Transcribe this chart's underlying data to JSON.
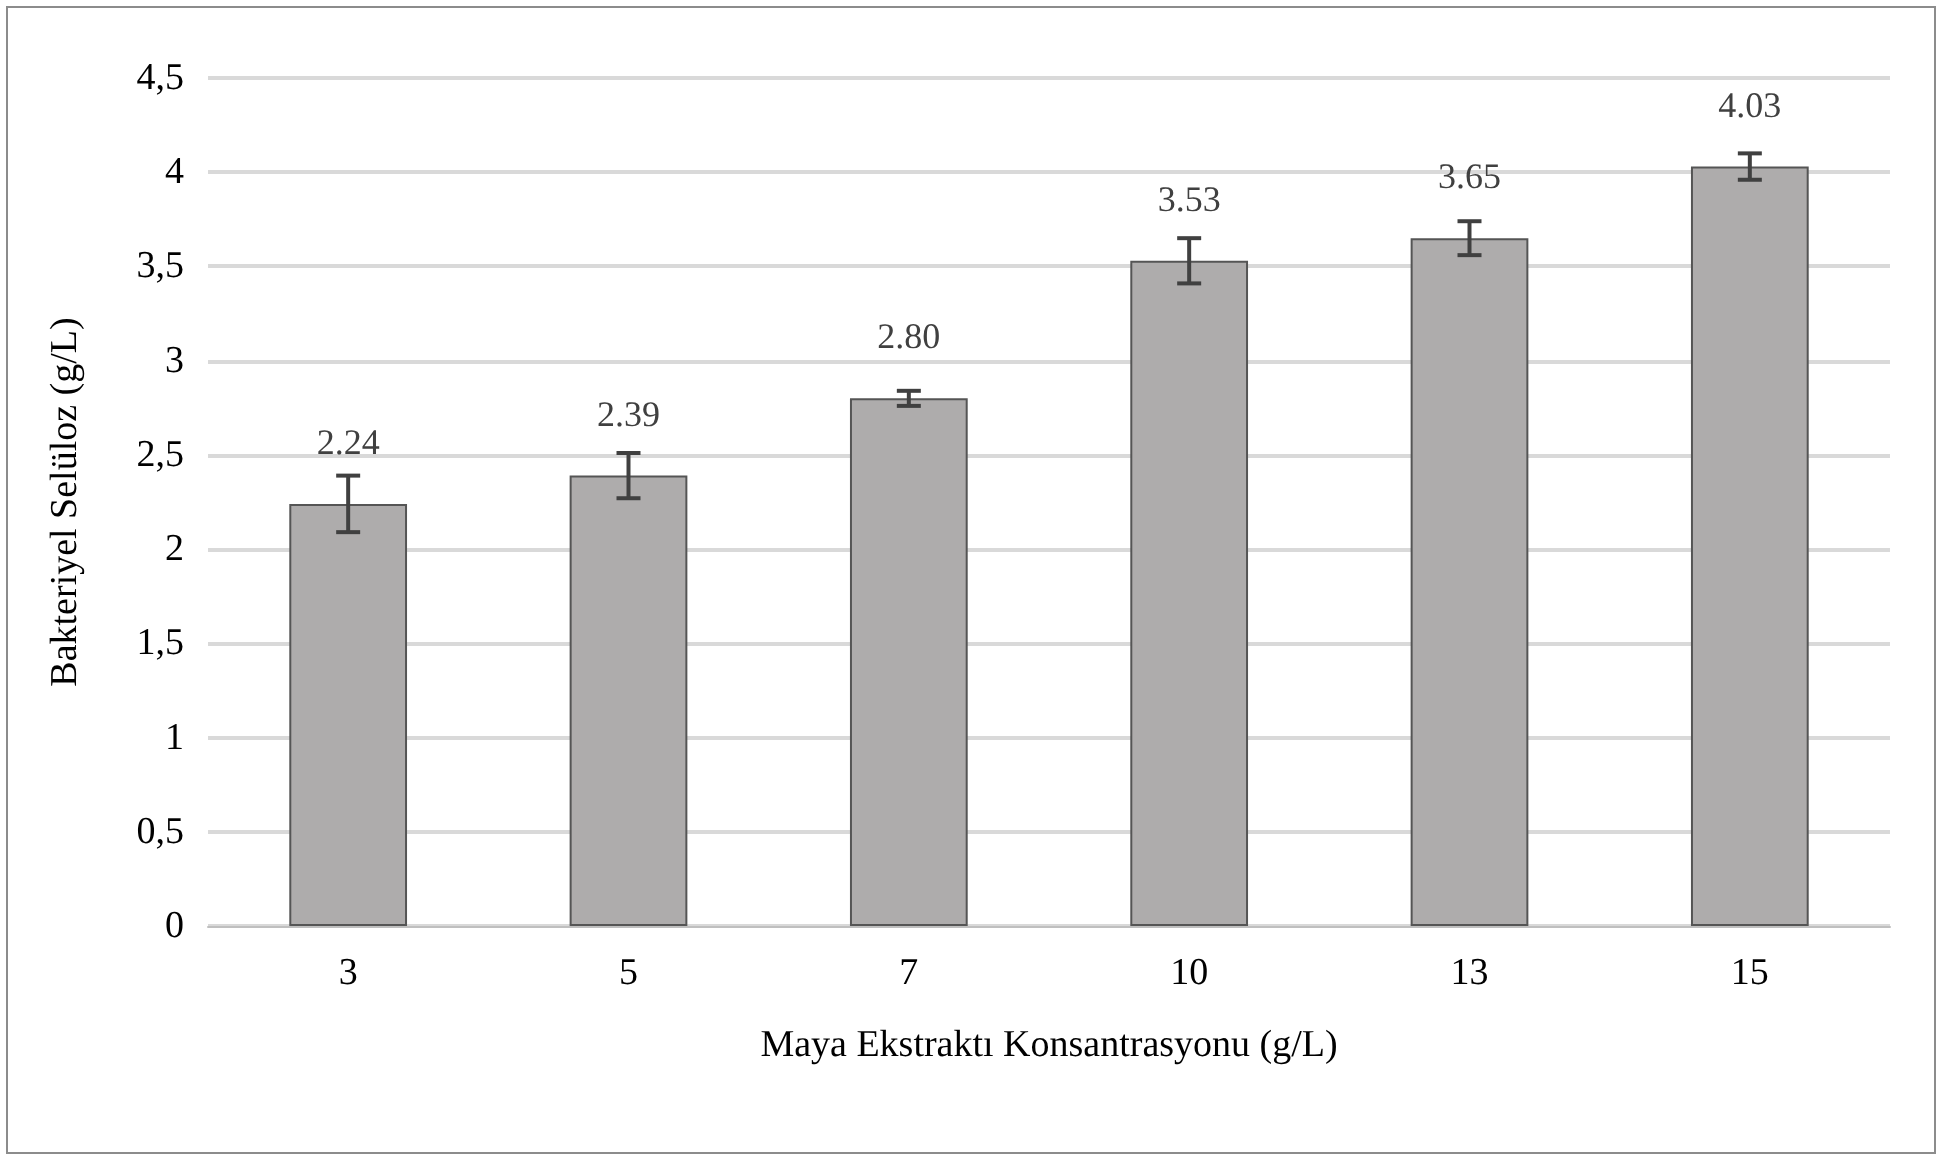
{
  "chart_data": {
    "type": "bar",
    "xlabel": "Maya Ekstraktı Konsantrasyonu (g/L)",
    "ylabel": "Bakteriyel Selüloz (g/L)",
    "categories": [
      "3",
      "5",
      "7",
      "10",
      "13",
      "15"
    ],
    "values": [
      2.24,
      2.39,
      2.8,
      3.53,
      3.65,
      4.03
    ],
    "value_labels": [
      "2.24",
      "2.39",
      "2.80",
      "3.53",
      "3.65",
      "4.03"
    ],
    "errors": [
      0.15,
      0.12,
      0.04,
      0.12,
      0.09,
      0.07
    ],
    "color": "#aeacac",
    "ylim": [
      0,
      4.5
    ],
    "yticks": [
      {
        "value": 0,
        "label": "0"
      },
      {
        "value": 0.5,
        "label": "0,5"
      },
      {
        "value": 1,
        "label": "1"
      },
      {
        "value": 1.5,
        "label": "1,5"
      },
      {
        "value": 2,
        "label": "2"
      },
      {
        "value": 2.5,
        "label": "2,5"
      },
      {
        "value": 3,
        "label": "3"
      },
      {
        "value": 3.5,
        "label": "3,5"
      },
      {
        "value": 4,
        "label": "4"
      },
      {
        "value": 4.5,
        "label": "4,5"
      }
    ],
    "grid": "y"
  }
}
